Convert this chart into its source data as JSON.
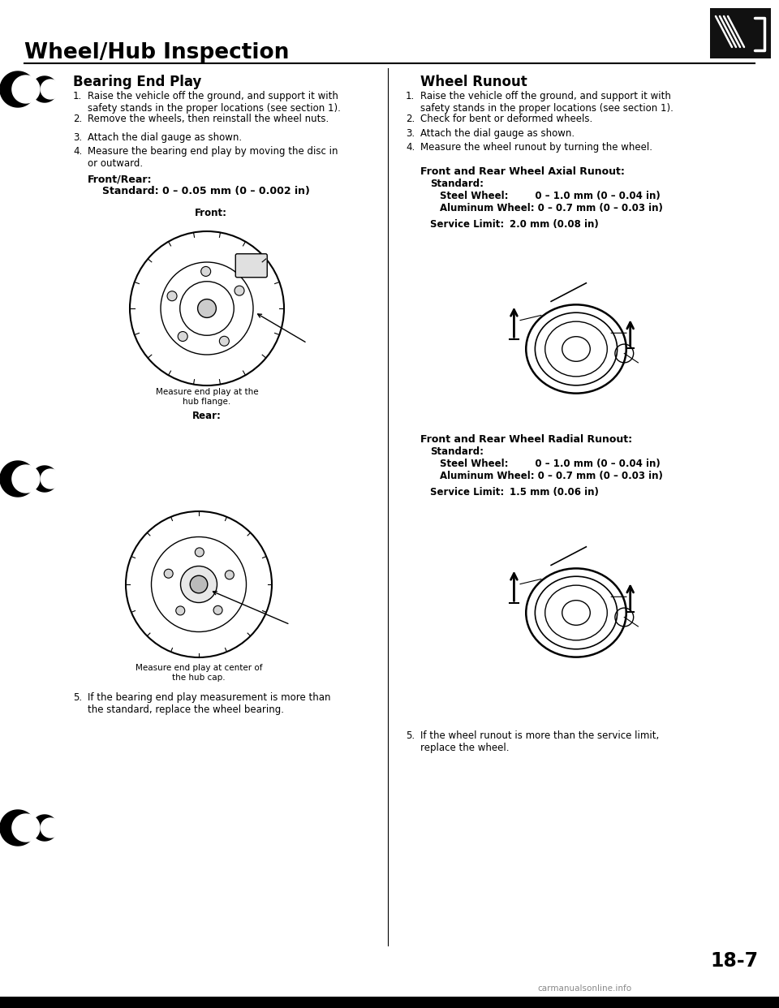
{
  "title": "Wheel/Hub Inspection",
  "page_number": "18-7",
  "watermark": "carmanualsonline.info",
  "bg_color": "#ffffff",
  "title_color": "#000000",
  "icon_box_color": "#111111",
  "left_column": {
    "section_title": "Bearing End Play",
    "steps": [
      "Raise the vehicle off the ground, and support it with\nsafety stands in the proper locations (see section 1).",
      "Remove the wheels, then reinstall the wheel nuts.",
      "Attach the dial gauge as shown.",
      "Measure the bearing end play by moving the disc in\nor outward."
    ],
    "spec_header": "Front/Rear:",
    "spec_line": "Standard: 0 – 0.05 mm (0 – 0.002 in)",
    "front_label": "Front:",
    "rear_label": "Rear:",
    "front_caption": "Measure end play at the\nhub flange.",
    "rear_caption": "Measure end play at center of\nthe hub cap.",
    "step5": "If the bearing end play measurement is more than\nthe standard, replace the wheel bearing."
  },
  "right_column": {
    "section_title": "Wheel Runout",
    "steps": [
      "Raise the vehicle off the ground, and support it with\nsafety stands in the proper locations (see section 1).",
      "Check for bent or deformed wheels.",
      "Attach the dial gauge as shown.",
      "Measure the wheel runout by turning the wheel."
    ],
    "axial_header": "Front and Rear Wheel Axial Runout:",
    "axial_standard": "Standard:",
    "axial_steel": "Steel Wheel:        0 – 1.0 mm (0 – 0.04 in)",
    "axial_alum": "Aluminum Wheel: 0 – 0.7 mm (0 – 0.03 in)",
    "axial_service_label": "Service Limit:",
    "axial_service_value": "2.0 mm (0.08 in)",
    "radial_header": "Front and Rear Wheel Radial Runout:",
    "radial_standard": "Standard:",
    "radial_steel": "Steel Wheel:        0 – 1.0 mm (0 – 0.04 in)",
    "radial_alum": "Aluminum Wheel: 0 – 0.7 mm (0 – 0.03 in)",
    "radial_service_label": "Service Limit:",
    "radial_service_value": "1.5 mm (0.06 in)",
    "step5": "If the wheel runout is more than the service limit,\nreplace the wheel."
  }
}
